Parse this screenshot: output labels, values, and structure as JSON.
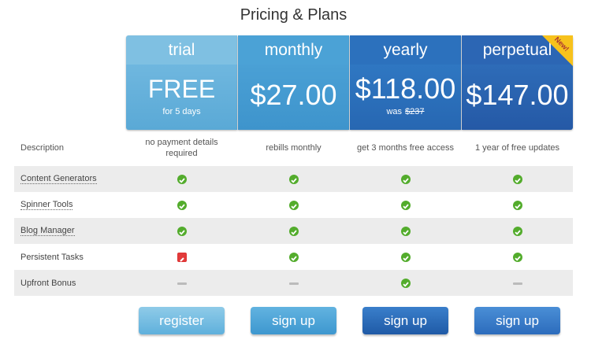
{
  "title": "Pricing & Plans",
  "badge": "New!",
  "description_label": "Description",
  "plans": [
    {
      "name": "trial",
      "price": "FREE",
      "note": "for 5 days",
      "description": "no payment details required",
      "button": "register"
    },
    {
      "name": "monthly",
      "price": "$27.00",
      "description": "rebills monthly",
      "button": "sign up"
    },
    {
      "name": "yearly",
      "price": "$118.00",
      "was_label": "was",
      "was_price": "$237",
      "description": "get 3 months free access",
      "button": "sign up"
    },
    {
      "name": "perpetual",
      "price": "$147.00",
      "description": "1 year of free updates",
      "button": "sign up"
    }
  ],
  "features": [
    "Content Generators",
    "Spinner Tools",
    "Blog Manager",
    "Persistent Tasks",
    "Upfront Bonus"
  ]
}
